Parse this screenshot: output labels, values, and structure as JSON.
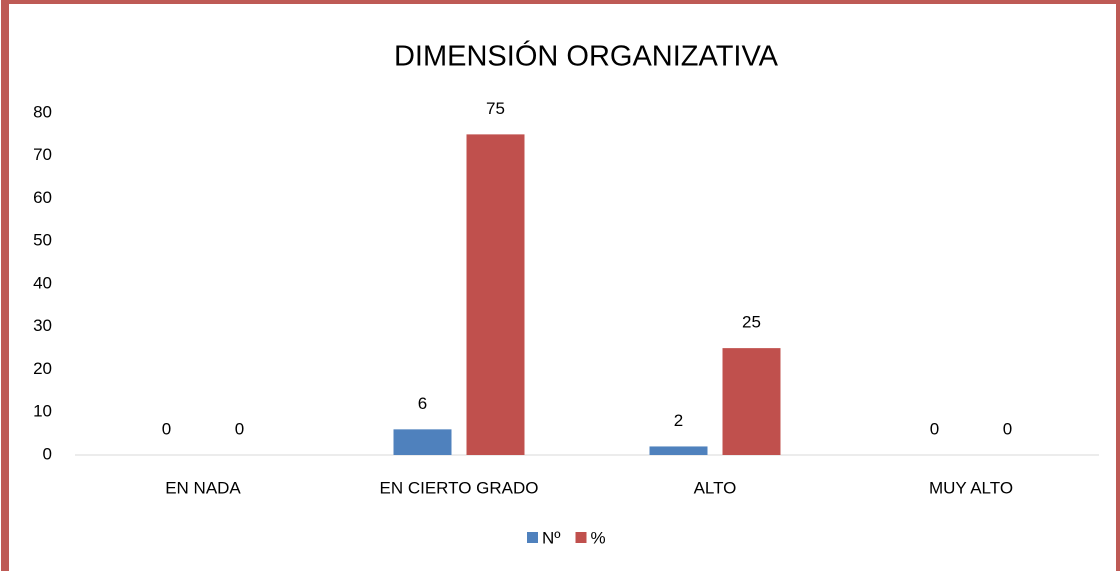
{
  "chart_data": {
    "type": "bar",
    "title": "DIMENSIÓN ORGANIZATIVA",
    "categories": [
      "EN NADA",
      "EN CIERTO GRADO",
      "ALTO",
      "MUY ALTO"
    ],
    "series": [
      {
        "name": "Nº",
        "color": "#4f81bd",
        "values": [
          0,
          6,
          2,
          0
        ]
      },
      {
        "name": "%",
        "color": "#c0504d",
        "values": [
          0,
          75,
          25,
          0
        ]
      }
    ],
    "ylim": [
      0,
      80
    ],
    "yticks": [
      0,
      10,
      20,
      30,
      40,
      50,
      60,
      70,
      80
    ],
    "grid": false,
    "legend": "bottom"
  }
}
